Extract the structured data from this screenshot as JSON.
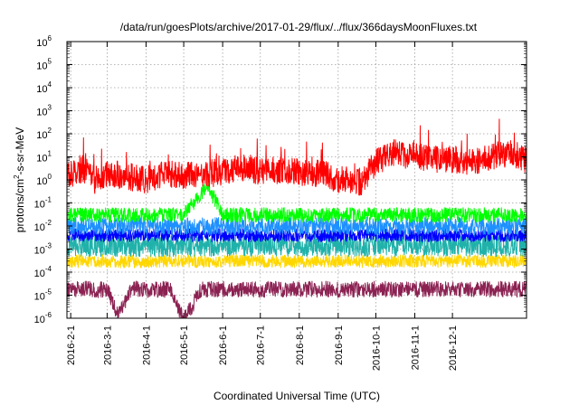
{
  "chart_data": {
    "type": "line",
    "title": "/data/run/goesPlots/archive/2017-01-29/flux/../flux/366daysMoonFluxes.txt",
    "xlabel": "Coordinated Universal Time (UTC)",
    "ylabel": {
      "prefix": "protons/cm",
      "superscript": "2",
      "suffix": "-s-sr-MeV"
    },
    "y_scale": "log",
    "ylim": [
      1e-06,
      1000000.0
    ],
    "xlim": [
      "2016-01-29",
      "2017-01-29"
    ],
    "grid": true,
    "legend": "none",
    "x_ticks": [
      "2016-2-1",
      "2016-3-1",
      "2016-4-1",
      "2016-5-1",
      "2016-6-1",
      "2016-7-1",
      "2016-8-1",
      "2016-9-1",
      "2016-10-1",
      "2016-11-1",
      "2016-12-1"
    ],
    "x_tick_dates": [
      "2016-02-01",
      "2016-03-01",
      "2016-04-01",
      "2016-05-01",
      "2016-06-01",
      "2016-07-01",
      "2016-08-01",
      "2016-09-01",
      "2016-10-01",
      "2016-11-01",
      "2016-12-01"
    ],
    "y_ticks": [
      {
        "base": "10",
        "exp": "-6"
      },
      {
        "base": "10",
        "exp": "-5"
      },
      {
        "base": "10",
        "exp": "-4"
      },
      {
        "base": "10",
        "exp": "-3"
      },
      {
        "base": "10",
        "exp": "-2"
      },
      {
        "base": "10",
        "exp": "-1"
      },
      {
        "base": "10",
        "exp": "0"
      },
      {
        "base": "10",
        "exp": "1"
      },
      {
        "base": "10",
        "exp": "2"
      },
      {
        "base": "10",
        "exp": "3"
      },
      {
        "base": "10",
        "exp": "4"
      },
      {
        "base": "10",
        "exp": "5"
      },
      {
        "base": "10",
        "exp": "6"
      }
    ],
    "y_tick_values": [
      1e-06,
      1e-05,
      0.0001,
      0.001,
      0.01,
      0.1,
      1,
      10,
      100,
      1000,
      10000,
      100000,
      1000000
    ],
    "series": [
      {
        "color": "#8b2252",
        "x": [
          "2016-01-29",
          "2016-02-15",
          "2016-03-01",
          "2016-03-10",
          "2016-03-20",
          "2016-04-01",
          "2016-04-20",
          "2016-05-01",
          "2016-05-15",
          "2016-06-01",
          "2016-07-01",
          "2016-08-01",
          "2016-09-01",
          "2016-10-01",
          "2016-11-01",
          "2016-12-01",
          "2017-01-01",
          "2017-01-29"
        ],
        "y": [
          2e-05,
          1.8e-05,
          1.7e-05,
          1.2e-06,
          2e-05,
          1.7e-05,
          1.8e-05,
          8e-07,
          1.8e-05,
          1.8e-05,
          1.8e-05,
          1.8e-05,
          1.8e-05,
          1.8e-05,
          1.8e-05,
          1.8e-05,
          1.8e-05,
          1.8e-05
        ]
      },
      {
        "color": "#ffd700",
        "x": [
          "2016-01-29",
          "2016-03-01",
          "2016-04-01",
          "2016-05-01",
          "2016-06-01",
          "2016-07-01",
          "2016-08-01",
          "2016-09-01",
          "2016-10-01",
          "2016-11-01",
          "2016-12-01",
          "2017-01-01",
          "2017-01-29"
        ],
        "y": [
          0.0003,
          0.0003,
          0.00028,
          0.0003,
          0.0003,
          0.0003,
          0.0003,
          0.0003,
          0.0003,
          0.0003,
          0.0003,
          0.0003,
          0.0003
        ]
      },
      {
        "color": "#20b2aa",
        "x": [
          "2016-01-29",
          "2016-03-01",
          "2016-04-01",
          "2016-05-01",
          "2016-06-01",
          "2016-07-01",
          "2016-08-01",
          "2016-09-01",
          "2016-10-01",
          "2016-11-01",
          "2016-12-01",
          "2017-01-01",
          "2017-01-29"
        ],
        "y": [
          0.0015,
          0.0015,
          0.0015,
          0.0015,
          0.0015,
          0.0015,
          0.0015,
          0.0015,
          0.0015,
          0.0015,
          0.0015,
          0.0015,
          0.0015
        ]
      },
      {
        "color": "#0000ff",
        "x": [
          "2016-01-29",
          "2016-03-01",
          "2016-04-01",
          "2016-05-01",
          "2016-06-01",
          "2016-07-01",
          "2016-08-01",
          "2016-09-01",
          "2016-10-01",
          "2016-11-01",
          "2016-12-01",
          "2017-01-01",
          "2017-01-29"
        ],
        "y": [
          0.004,
          0.004,
          0.004,
          0.004,
          0.004,
          0.004,
          0.004,
          0.004,
          0.004,
          0.004,
          0.004,
          0.004,
          0.004
        ]
      },
      {
        "color": "#1e90ff",
        "x": [
          "2016-01-29",
          "2016-03-01",
          "2016-04-01",
          "2016-05-01",
          "2016-06-01",
          "2016-07-01",
          "2016-08-01",
          "2016-09-01",
          "2016-10-01",
          "2016-11-01",
          "2016-12-01",
          "2017-01-01",
          "2017-01-29"
        ],
        "y": [
          0.01,
          0.01,
          0.01,
          0.01,
          0.01,
          0.01,
          0.01,
          0.01,
          0.01,
          0.01,
          0.01,
          0.01,
          0.01
        ]
      },
      {
        "color": "#00ff00",
        "x": [
          "2016-01-29",
          "2016-03-01",
          "2016-04-01",
          "2016-05-01",
          "2016-05-20",
          "2016-06-01",
          "2016-07-01",
          "2016-08-01",
          "2016-09-01",
          "2016-10-01",
          "2016-11-01",
          "2016-12-01",
          "2017-01-01",
          "2017-01-29"
        ],
        "y": [
          0.03,
          0.03,
          0.03,
          0.03,
          0.6,
          0.03,
          0.03,
          0.03,
          0.03,
          0.03,
          0.03,
          0.03,
          0.03,
          0.03
        ]
      },
      {
        "color": "#ff0000",
        "x": [
          "2016-01-29",
          "2016-02-10",
          "2016-02-20",
          "2016-03-01",
          "2016-03-15",
          "2016-04-01",
          "2016-04-15",
          "2016-05-01",
          "2016-05-15",
          "2016-06-01",
          "2016-06-20",
          "2016-07-01",
          "2016-07-20",
          "2016-08-01",
          "2016-08-20",
          "2016-09-01",
          "2016-09-20",
          "2016-10-01",
          "2016-10-15",
          "2016-11-01",
          "2016-11-15",
          "2016-12-01",
          "2016-12-15",
          "2017-01-01",
          "2017-01-15",
          "2017-01-29"
        ],
        "y": [
          1.5,
          3,
          1,
          2,
          1.5,
          1,
          2,
          1.5,
          2,
          2,
          4,
          2,
          3,
          2,
          2,
          1,
          0.8,
          6,
          15,
          10,
          8,
          8,
          6,
          10,
          15,
          8
        ]
      }
    ]
  }
}
